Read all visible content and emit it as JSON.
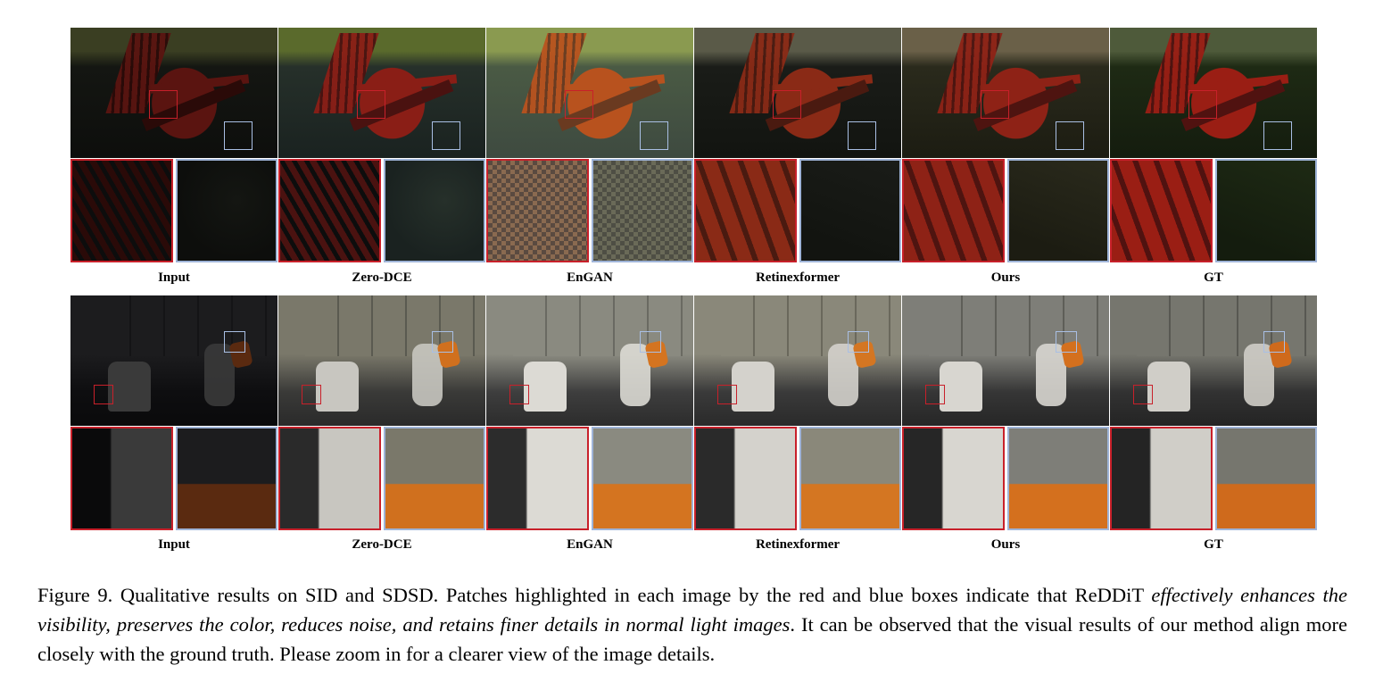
{
  "figure": {
    "columns": [
      "Input",
      "Zero-DCE",
      "EnGAN",
      "Retinexformer",
      "Ours",
      "GT"
    ],
    "row1_labels": [
      "Input",
      "Zero-DCE",
      "EnGAN",
      "Retinexformer",
      "Ours",
      "GT"
    ],
    "row2_labels": [
      "Input",
      "Zero-DCE",
      "EnGAN",
      "Retinexformer",
      "Ours",
      "GT"
    ]
  },
  "caption": {
    "prefix": "Figure 9.  Qualitative results on SID and SDSD. Patches highlighted in each image by the red and blue boxes indicate that ReDDiT",
    "italic": "effectively enhances the visibility, preserves the color, reduces noise, and retains finer details in normal light images",
    "suffix": ". It can be observed that the visual results of our method align more closely with the ground truth. Please zoom in for a clearer view of the image details."
  },
  "colors": {
    "red_box": "#c8202a",
    "blue_box": "#a9bfe4"
  }
}
